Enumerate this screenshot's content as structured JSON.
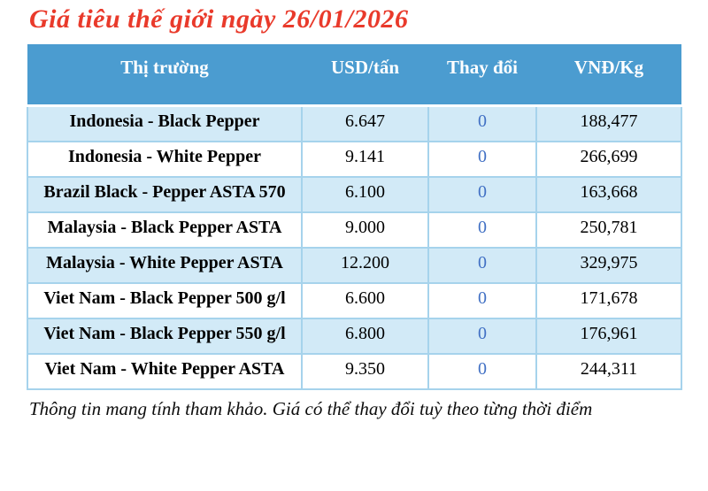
{
  "title": "Giá tiêu thế giới ngày 26/01/2026",
  "disclaimer": "Thông tin mang tính tham khảo. Giá có thể thay đổi tuỳ theo từng thời điểm",
  "colors": {
    "title_red": "#e93a2b",
    "header_blue": "#4b9cd0",
    "row_alt_blue": "#d2eaf7",
    "row_white": "#ffffff",
    "cell_border_blue": "#a6d3ec",
    "change_value_blue": "#4170c4"
  },
  "table": {
    "headers": [
      "Thị trường",
      "USD/tấn",
      "Thay đổi",
      "VNĐ/Kg"
    ],
    "rows": [
      {
        "market": "Indonesia - Black Pepper",
        "usd": "6.647",
        "change": "0",
        "vnd": "188,477"
      },
      {
        "market": "Indonesia - White Pepper",
        "usd": "9.141",
        "change": "0",
        "vnd": "266,699"
      },
      {
        "market": "Brazil Black - Pepper ASTA 570",
        "usd": "6.100",
        "change": "0",
        "vnd": "163,668"
      },
      {
        "market": "Malaysia - Black Pepper ASTA",
        "usd": "9.000",
        "change": "0",
        "vnd": "250,781"
      },
      {
        "market": "Malaysia - White Pepper ASTA",
        "usd": "12.200",
        "change": "0",
        "vnd": "329,975"
      },
      {
        "market": "Viet Nam - Black Pepper 500 g/l",
        "usd": "6.600",
        "change": "0",
        "vnd": "171,678"
      },
      {
        "market": "Viet Nam - Black Pepper 550 g/l",
        "usd": "6.800",
        "change": "0",
        "vnd": "176,961"
      },
      {
        "market": "Viet Nam - White Pepper ASTA",
        "usd": "9.350",
        "change": "0",
        "vnd": "244,311"
      }
    ]
  }
}
